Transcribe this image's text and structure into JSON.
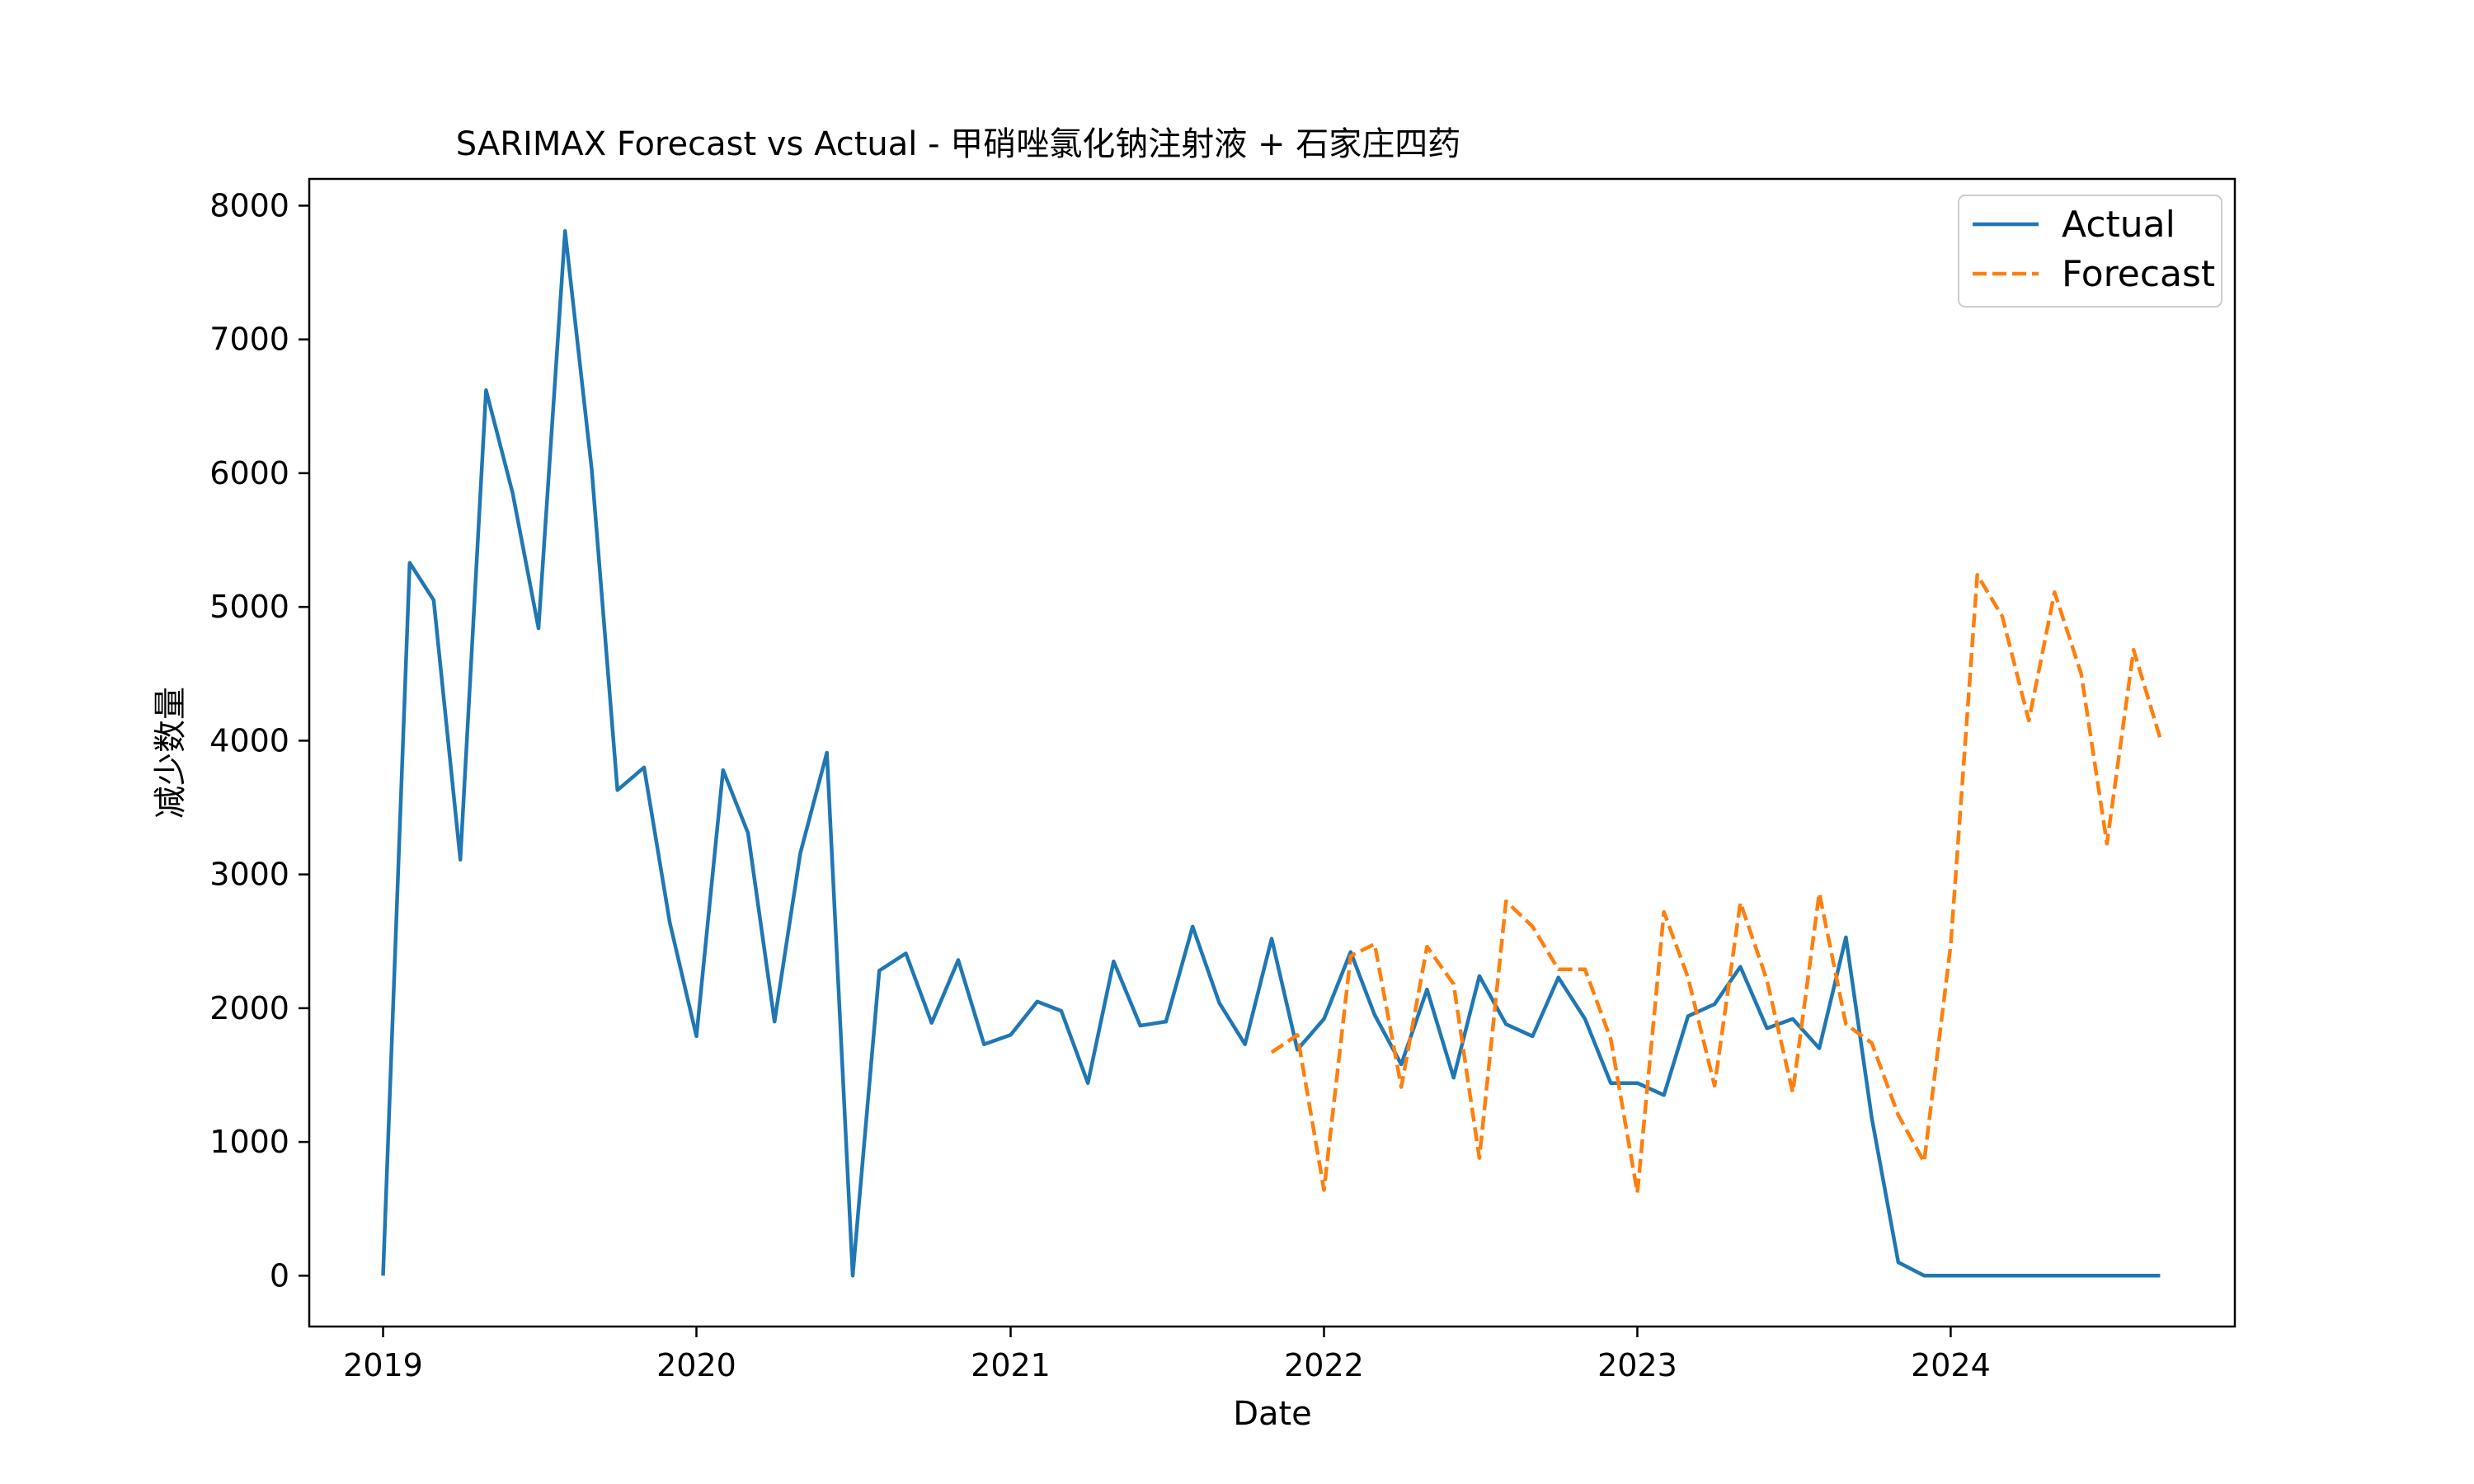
{
  "chart_data": {
    "type": "line",
    "title": "SARIMAX Forecast vs Actual - 甲硝唑氯化钠注射液 + 石家庄四药",
    "xlabel": "Date",
    "ylabel": "减少数量",
    "xlim": [
      "2018-10-07",
      "2024-11-27"
    ],
    "ylim": [
      -380,
      8200
    ],
    "x_ticks": [
      "2019",
      "2020",
      "2021",
      "2022",
      "2023",
      "2024"
    ],
    "y_ticks": [
      0,
      1000,
      2000,
      3000,
      4000,
      5000,
      6000,
      7000,
      8000
    ],
    "grid": false,
    "legend_position": "top-right",
    "series": [
      {
        "name": "Actual",
        "color": "#1f77b4",
        "style": "solid",
        "x": [
          "2019-01",
          "2019-02",
          "2019-03",
          "2019-04",
          "2019-05",
          "2019-06",
          "2019-07",
          "2019-08",
          "2019-09",
          "2019-10",
          "2019-11",
          "2019-12",
          "2020-01",
          "2020-02",
          "2020-03",
          "2020-04",
          "2020-05",
          "2020-06",
          "2020-07",
          "2020-08",
          "2020-09",
          "2020-10",
          "2020-11",
          "2020-12",
          "2021-01",
          "2021-02",
          "2021-03",
          "2021-04",
          "2021-05",
          "2021-06",
          "2021-07",
          "2021-08",
          "2021-09",
          "2021-10",
          "2021-11",
          "2021-12",
          "2022-01",
          "2022-02",
          "2022-03",
          "2022-04",
          "2022-05",
          "2022-06",
          "2022-07",
          "2022-08",
          "2022-09",
          "2022-10",
          "2022-11",
          "2022-12",
          "2023-01",
          "2023-02",
          "2023-03",
          "2023-04",
          "2023-05",
          "2023-06",
          "2023-07",
          "2023-08",
          "2023-09",
          "2023-10",
          "2023-11",
          "2023-12",
          "2024-01",
          "2024-02",
          "2024-03",
          "2024-04",
          "2024-05",
          "2024-06",
          "2024-07",
          "2024-08",
          "2024-09"
        ],
        "values": [
          0,
          5330,
          5050,
          3110,
          6620,
          5850,
          4840,
          7810,
          6030,
          3630,
          3800,
          2640,
          1790,
          3780,
          3310,
          1900,
          3160,
          3910,
          0,
          2280,
          2410,
          1890,
          2360,
          1730,
          1800,
          2050,
          1980,
          1440,
          2350,
          1870,
          1900,
          2610,
          2040,
          1730,
          2520,
          1690,
          1920,
          2420,
          1950,
          1580,
          2140,
          1480,
          2240,
          1880,
          1790,
          2230,
          1920,
          1440,
          1440,
          1350,
          1940,
          2030,
          2310,
          1850,
          1920,
          1700,
          2530,
          1180,
          100,
          0,
          0,
          0,
          0,
          0,
          0,
          0,
          0,
          0,
          0
        ]
      },
      {
        "name": "Forecast",
        "color": "#ff7f0e",
        "style": "dashed",
        "x": [
          "2021-11",
          "2021-12",
          "2022-01",
          "2022-02",
          "2022-03",
          "2022-04",
          "2022-05",
          "2022-06",
          "2022-07",
          "2022-08",
          "2022-09",
          "2022-10",
          "2022-11",
          "2022-12",
          "2023-01",
          "2023-02",
          "2023-03",
          "2023-04",
          "2023-05",
          "2023-06",
          "2023-07",
          "2023-08",
          "2023-09",
          "2023-10",
          "2023-11",
          "2023-12",
          "2024-01",
          "2024-02",
          "2024-03",
          "2024-04",
          "2024-05",
          "2024-06",
          "2024-07",
          "2024-08",
          "2024-09"
        ],
        "values": [
          1670,
          1800,
          640,
          2390,
          2480,
          1410,
          2460,
          2180,
          880,
          2800,
          2610,
          2290,
          2290,
          1770,
          620,
          2720,
          2230,
          1420,
          2790,
          2210,
          1370,
          2860,
          1880,
          1740,
          1200,
          850,
          2470,
          5240,
          4930,
          4150,
          5110,
          4500,
          3230,
          4680,
          4020
        ]
      }
    ]
  }
}
